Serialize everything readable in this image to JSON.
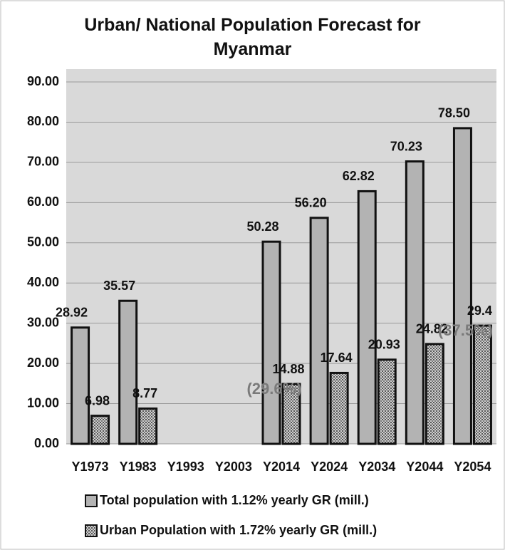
{
  "chart_data": {
    "type": "bar",
    "title": "Urban/ National Population Forecast for Myanmar",
    "categories": [
      "Y1973",
      "Y1983",
      "Y1993",
      "Y2003",
      "Y2014",
      "Y2024",
      "Y2034",
      "Y2044",
      "Y2054"
    ],
    "series": [
      {
        "name": "Total population with 1.12% yearly GR (mill.)",
        "color": "#b3b3b3",
        "values": [
          28.92,
          35.57,
          null,
          null,
          50.28,
          56.2,
          62.82,
          70.23,
          78.5
        ],
        "value_labels": [
          "28.92",
          "35.57",
          null,
          null,
          "50.28",
          "56.20",
          "62.82",
          "70.23",
          "78.50"
        ]
      },
      {
        "name": "Urban Population with 1.72% yearly GR (mill.)",
        "color": "#9a9a9a",
        "values": [
          6.98,
          8.77,
          null,
          null,
          14.88,
          17.64,
          20.93,
          24.82,
          29.4
        ],
        "value_labels": [
          "6.98",
          "8.77",
          null,
          null,
          "14.88",
          "17.64",
          "20.93",
          "24.82",
          "29.4"
        ]
      }
    ],
    "annotations": [
      "(29.6%)",
      "(37.5%)"
    ],
    "ylim": [
      0,
      90
    ],
    "yticks": [
      {
        "value": 0,
        "label": "0.00"
      },
      {
        "value": 10,
        "label": "10.00"
      },
      {
        "value": 20,
        "label": "20.00"
      },
      {
        "value": 30,
        "label": "30.00"
      },
      {
        "value": 40,
        "label": "40.00"
      },
      {
        "value": 50,
        "label": "50.00"
      },
      {
        "value": 60,
        "label": "60.00"
      },
      {
        "value": 70,
        "label": "70.00"
      },
      {
        "value": 80,
        "label": "80.00"
      },
      {
        "value": 90,
        "label": "90.00"
      }
    ],
    "grid": true,
    "legend": "bottom"
  }
}
